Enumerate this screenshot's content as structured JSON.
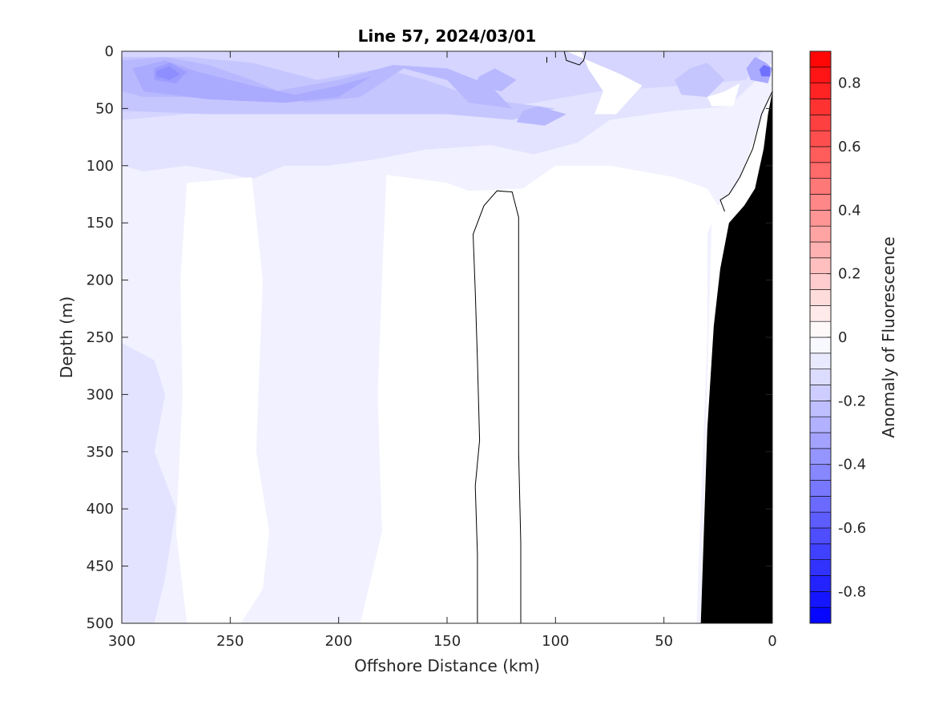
{
  "chart_data": {
    "type": "heatmap",
    "title": "Line 57, 2024/03/01",
    "xlabel": "Offshore Distance (km)",
    "ylabel": "Depth (m)",
    "xlim": [
      300,
      0
    ],
    "ylim": [
      0,
      500
    ],
    "x_reversed": true,
    "y_reversed": true,
    "x_ticks": [
      300,
      250,
      200,
      150,
      100,
      50,
      0
    ],
    "y_ticks": [
      0,
      50,
      100,
      150,
      200,
      250,
      300,
      350,
      400,
      450,
      500
    ],
    "x_tick_labels": [
      "300",
      "250",
      "200",
      "150",
      "100",
      "50",
      "0"
    ],
    "y_tick_labels": [
      "0",
      "50",
      "100",
      "150",
      "200",
      "250",
      "300",
      "350",
      "400",
      "450",
      "500"
    ],
    "colorbar": {
      "label": "Anomaly of Fluorescence",
      "range": [
        -0.9,
        0.9
      ],
      "step": 0.05,
      "ticks": [
        0.8,
        0.6,
        0.4,
        0.2,
        0,
        -0.2,
        -0.4,
        -0.6,
        -0.8
      ],
      "tick_labels": [
        "0.8",
        "0.6",
        "0.4",
        "0.2",
        "0",
        "-0.2",
        "-0.4",
        "-0.6",
        "-0.8"
      ],
      "colormap": "blue-white-red",
      "colors": {
        "negative": "#0000ff",
        "zero": "#ffffff",
        "positive": "#ff0000"
      }
    },
    "contour_levels_shown": [
      0
    ],
    "fields": [
      {
        "name": "band-0.05",
        "value": -0.05,
        "region": [
          [
            300,
            0
          ],
          [
            0,
            0
          ],
          [
            0,
            35
          ],
          [
            17,
            120
          ],
          [
            25,
            135
          ],
          [
            28,
            150
          ],
          [
            33,
            500
          ],
          [
            300,
            500
          ]
        ]
      },
      {
        "name": "band-0.10",
        "value": -0.1,
        "region": [
          [
            300,
            0
          ],
          [
            0,
            0
          ],
          [
            0,
            10
          ],
          [
            10,
            30
          ],
          [
            20,
            48
          ],
          [
            45,
            52
          ],
          [
            75,
            60
          ],
          [
            90,
            80
          ],
          [
            110,
            90
          ],
          [
            130,
            82
          ],
          [
            160,
            86
          ],
          [
            185,
            95
          ],
          [
            205,
            100
          ],
          [
            225,
            100
          ],
          [
            240,
            112
          ],
          [
            255,
            105
          ],
          [
            270,
            100
          ],
          [
            290,
            105
          ],
          [
            300,
            100
          ]
        ]
      },
      {
        "name": "band-0.15",
        "value": -0.15,
        "region": [
          [
            300,
            0
          ],
          [
            5,
            0
          ],
          [
            8,
            12
          ],
          [
            12,
            25
          ],
          [
            40,
            30
          ],
          [
            80,
            35
          ],
          [
            110,
            45
          ],
          [
            140,
            52
          ],
          [
            170,
            55
          ],
          [
            200,
            55
          ],
          [
            240,
            55
          ],
          [
            270,
            55
          ],
          [
            300,
            60
          ]
        ]
      },
      {
        "name": "band-0.20",
        "value": -0.2,
        "region": [
          [
            300,
            5
          ],
          [
            270,
            5
          ],
          [
            240,
            10
          ],
          [
            210,
            25
          ],
          [
            180,
            15
          ],
          [
            160,
            25
          ],
          [
            140,
            38
          ],
          [
            120,
            45
          ],
          [
            100,
            50
          ],
          [
            120,
            60
          ],
          [
            150,
            55
          ],
          [
            180,
            55
          ],
          [
            220,
            55
          ],
          [
            260,
            55
          ],
          [
            300,
            52
          ]
        ]
      },
      {
        "name": "band-0.25",
        "value": -0.25,
        "region": [
          [
            300,
            8
          ],
          [
            280,
            5
          ],
          [
            260,
            12
          ],
          [
            240,
            25
          ],
          [
            215,
            45
          ],
          [
            190,
            40
          ],
          [
            170,
            15
          ],
          [
            150,
            25
          ],
          [
            140,
            45
          ],
          [
            120,
            50
          ],
          [
            130,
            30
          ],
          [
            150,
            15
          ],
          [
            175,
            12
          ],
          [
            200,
            25
          ],
          [
            230,
            35
          ],
          [
            260,
            40
          ],
          [
            290,
            40
          ],
          [
            300,
            35
          ]
        ]
      },
      {
        "name": "band-0.30",
        "value": -0.3,
        "region": [
          [
            295,
            15
          ],
          [
            280,
            8
          ],
          [
            265,
            18
          ],
          [
            240,
            30
          ],
          [
            220,
            38
          ],
          [
            200,
            30
          ],
          [
            185,
            22
          ],
          [
            200,
            40
          ],
          [
            225,
            45
          ],
          [
            260,
            42
          ],
          [
            290,
            35
          ]
        ]
      },
      {
        "name": "band-0.35",
        "value": -0.35,
        "region": [
          [
            285,
            15
          ],
          [
            278,
            10
          ],
          [
            270,
            18
          ],
          [
            275,
            28
          ],
          [
            285,
            25
          ]
        ]
      },
      {
        "name": "band-0.40",
        "value": -0.4,
        "region": [
          [
            284,
            17
          ],
          [
            278,
            13
          ],
          [
            273,
            20
          ],
          [
            278,
            25
          ],
          [
            284,
            22
          ]
        ]
      },
      {
        "name": "band-right-0.20",
        "value": -0.2,
        "region": [
          [
            38,
            15
          ],
          [
            30,
            10
          ],
          [
            22,
            25
          ],
          [
            30,
            40
          ],
          [
            42,
            38
          ],
          [
            45,
            25
          ]
        ]
      },
      {
        "name": "band-right-0.30",
        "value": -0.3,
        "region": [
          [
            8,
            5
          ],
          [
            3,
            10
          ],
          [
            0,
            15
          ],
          [
            2,
            28
          ],
          [
            10,
            25
          ],
          [
            12,
            15
          ]
        ]
      },
      {
        "name": "band-right-0.50",
        "value": -0.5,
        "region": [
          [
            4,
            12
          ],
          [
            1,
            14
          ],
          [
            1,
            22
          ],
          [
            5,
            22
          ],
          [
            6,
            16
          ]
        ]
      },
      {
        "name": "band-mid-0.25",
        "value": -0.25,
        "region": [
          [
            135,
            22
          ],
          [
            128,
            15
          ],
          [
            118,
            25
          ],
          [
            125,
            35
          ],
          [
            138,
            30
          ]
        ]
      },
      {
        "name": "band-mid2-0.25",
        "value": -0.25,
        "region": [
          [
            115,
            52
          ],
          [
            108,
            48
          ],
          [
            95,
            55
          ],
          [
            105,
            65
          ],
          [
            118,
            62
          ]
        ]
      },
      {
        "name": "band-deep-0.10",
        "value": -0.1,
        "region": [
          [
            300,
            255
          ],
          [
            285,
            270
          ],
          [
            280,
            300
          ],
          [
            285,
            350
          ],
          [
            275,
            400
          ],
          [
            280,
            460
          ],
          [
            285,
            500
          ],
          [
            300,
            500
          ]
        ]
      },
      {
        "name": "zero-pocket-a",
        "value": 0,
        "region": [
          [
            270,
            115
          ],
          [
            240,
            110
          ],
          [
            235,
            200
          ],
          [
            238,
            350
          ],
          [
            232,
            420
          ],
          [
            235,
            470
          ],
          [
            245,
            500
          ],
          [
            270,
            500
          ],
          [
            275,
            420
          ],
          [
            272,
            300
          ],
          [
            273,
            200
          ]
        ]
      },
      {
        "name": "zero-pocket-b",
        "value": 0,
        "region": [
          [
            178,
            108
          ],
          [
            150,
            115
          ],
          [
            140,
            122
          ],
          [
            115,
            120
          ],
          [
            100,
            100
          ],
          [
            75,
            100
          ],
          [
            45,
            110
          ],
          [
            30,
            120
          ],
          [
            25,
            135
          ],
          [
            30,
            160
          ],
          [
            30,
            250
          ],
          [
            35,
            500
          ],
          [
            190,
            500
          ],
          [
            180,
            420
          ],
          [
            182,
            300
          ],
          [
            180,
            200
          ]
        ]
      },
      {
        "name": "zero-pocket-c",
        "value": 0,
        "region": [
          [
            95,
            0
          ],
          [
            88,
            0
          ],
          [
            85,
            15
          ],
          [
            78,
            35
          ],
          [
            82,
            55
          ],
          [
            72,
            55
          ],
          [
            60,
            30
          ],
          [
            70,
            20
          ],
          [
            85,
            8
          ]
        ]
      },
      {
        "name": "zero-pocket-d",
        "value": 0,
        "region": [
          [
            30,
            40
          ],
          [
            22,
            35
          ],
          [
            15,
            28
          ],
          [
            18,
            48
          ],
          [
            28,
            48
          ]
        ]
      }
    ],
    "zero_contours": [
      {
        "name": "contour-0-deep",
        "points": [
          [
            136,
            500
          ],
          [
            136,
            440
          ],
          [
            137,
            380
          ],
          [
            135,
            340
          ],
          [
            136,
            270
          ],
          [
            137,
            210
          ],
          [
            138,
            160
          ],
          [
            133,
            135
          ],
          [
            127,
            122
          ],
          [
            120,
            123
          ],
          [
            117,
            145
          ],
          [
            117,
            200
          ],
          [
            117,
            270
          ],
          [
            117,
            350
          ],
          [
            116,
            430
          ],
          [
            116,
            500
          ]
        ]
      },
      {
        "name": "contour-0-surface",
        "points": [
          [
            96,
            0
          ],
          [
            95,
            8
          ],
          [
            89,
            12
          ],
          [
            87,
            8
          ],
          [
            86,
            0
          ]
        ]
      },
      {
        "name": "contour-0-dot",
        "points": [
          [
            104,
            5
          ],
          [
            104,
            10
          ]
        ]
      },
      {
        "name": "contour-0-slope",
        "points": [
          [
            0,
            35
          ],
          [
            5,
            55
          ],
          [
            9,
            85
          ],
          [
            15,
            110
          ],
          [
            20,
            125
          ],
          [
            24,
            130
          ],
          [
            22,
            140
          ]
        ]
      }
    ],
    "bathymetry": {
      "color": "#000000",
      "profile": [
        [
          0,
          35
        ],
        [
          2,
          55
        ],
        [
          4,
          85
        ],
        [
          8,
          120
        ],
        [
          13,
          135
        ],
        [
          20,
          150
        ],
        [
          24,
          190
        ],
        [
          27,
          240
        ],
        [
          30,
          330
        ],
        [
          33,
          500
        ],
        [
          0,
          500
        ]
      ]
    }
  }
}
